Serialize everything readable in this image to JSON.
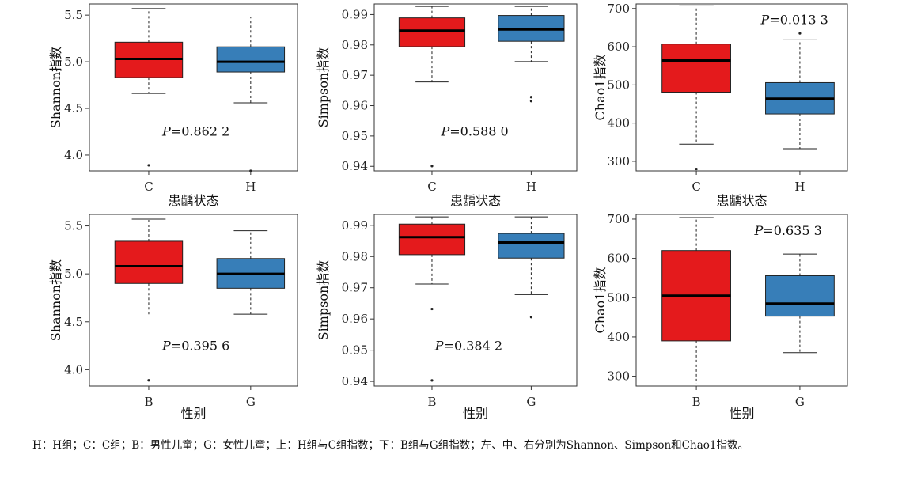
{
  "caption": "H：H组；C：C组；B：男性儿童；G：女性儿童；上：H组与C组指数；下：B组与G组指数；左、中、右分别为Shannon、Simpson和Chao1指数。",
  "colors": {
    "red": "#e41a1c",
    "blue": "#377eb8"
  },
  "chart_data": [
    {
      "type": "box",
      "panel": "top-left",
      "ylabel": "Shannon指数",
      "xlabel": "患龋状态",
      "ylim": [
        3.83,
        5.62
      ],
      "yticks": [
        4.0,
        4.5,
        5.0,
        5.5
      ],
      "p_label": "P",
      "p_value": "=0.862 2",
      "groups": [
        {
          "name": "C",
          "color": "red",
          "min": 4.66,
          "q1": 4.83,
          "median": 5.03,
          "q3": 5.21,
          "max": 5.57,
          "outliers": [
            3.89
          ]
        },
        {
          "name": "H",
          "color": "blue",
          "min": 4.56,
          "q1": 4.89,
          "median": 5.0,
          "q3": 5.16,
          "max": 5.48,
          "outliers": [
            3.83
          ]
        }
      ]
    },
    {
      "type": "box",
      "panel": "top-middle",
      "ylabel": "Simpson指数",
      "xlabel": "患龋状态",
      "ylim": [
        0.9385,
        0.9935
      ],
      "yticks": [
        0.94,
        0.95,
        0.96,
        0.97,
        0.98,
        0.99
      ],
      "p_label": "P",
      "p_value": "=0.588 0",
      "groups": [
        {
          "name": "C",
          "color": "red",
          "min": 0.9678,
          "q1": 0.9794,
          "median": 0.9847,
          "q3": 0.9889,
          "max": 0.9927,
          "outliers": [
            0.9401
          ]
        },
        {
          "name": "H",
          "color": "blue",
          "min": 0.9745,
          "q1": 0.9812,
          "median": 0.9851,
          "q3": 0.9897,
          "max": 0.9927,
          "outliers": [
            0.9628,
            0.9615
          ]
        }
      ]
    },
    {
      "type": "box",
      "panel": "top-right",
      "ylabel": "Chao1指数",
      "xlabel": "患龋状态",
      "ylim": [
        275,
        712
      ],
      "yticks": [
        300,
        400,
        500,
        600,
        700
      ],
      "p_label": "P",
      "p_value": "=0.013 3",
      "groups": [
        {
          "name": "C",
          "color": "red",
          "min": 345,
          "q1": 481,
          "median": 564,
          "q3": 607,
          "max": 707,
          "outliers": [
            280
          ]
        },
        {
          "name": "H",
          "color": "blue",
          "min": 333,
          "q1": 424,
          "median": 464,
          "q3": 506,
          "max": 618,
          "outliers": [
            635
          ]
        }
      ]
    },
    {
      "type": "box",
      "panel": "bottom-left",
      "ylabel": "Shannon指数",
      "xlabel": "性别",
      "ylim": [
        3.83,
        5.62
      ],
      "yticks": [
        4.0,
        4.5,
        5.0,
        5.5
      ],
      "p_label": "P",
      "p_value": "=0.395 6",
      "groups": [
        {
          "name": "B",
          "color": "red",
          "min": 4.56,
          "q1": 4.9,
          "median": 5.08,
          "q3": 5.34,
          "max": 5.57,
          "outliers": [
            3.89
          ]
        },
        {
          "name": "G",
          "color": "blue",
          "min": 4.58,
          "q1": 4.85,
          "median": 5.0,
          "q3": 5.16,
          "max": 5.45,
          "outliers": []
        }
      ]
    },
    {
      "type": "box",
      "panel": "bottom-middle",
      "ylabel": "Simpson指数",
      "xlabel": "性别",
      "ylim": [
        0.9385,
        0.9935
      ],
      "yticks": [
        0.94,
        0.95,
        0.96,
        0.97,
        0.98,
        0.99
      ],
      "p_label": "P",
      "p_value": "=0.384 2",
      "groups": [
        {
          "name": "B",
          "color": "red",
          "min": 0.9712,
          "q1": 0.9806,
          "median": 0.9862,
          "q3": 0.9904,
          "max": 0.9927,
          "outliers": [
            0.9632,
            0.9403
          ]
        },
        {
          "name": "G",
          "color": "blue",
          "min": 0.9678,
          "q1": 0.9795,
          "median": 0.9845,
          "q3": 0.9874,
          "max": 0.9927,
          "outliers": [
            0.9606
          ]
        }
      ]
    },
    {
      "type": "box",
      "panel": "bottom-right",
      "ylabel": "Chao1指数",
      "xlabel": "性别",
      "ylim": [
        275,
        712
      ],
      "yticks": [
        300,
        400,
        500,
        600,
        700
      ],
      "p_label": "P",
      "p_value": "=0.635 3",
      "groups": [
        {
          "name": "B",
          "color": "red",
          "min": 280,
          "q1": 390,
          "median": 505,
          "q3": 620,
          "max": 704,
          "outliers": []
        },
        {
          "name": "G",
          "color": "blue",
          "min": 360,
          "q1": 453,
          "median": 485,
          "q3": 556,
          "max": 611,
          "outliers": []
        }
      ]
    }
  ]
}
